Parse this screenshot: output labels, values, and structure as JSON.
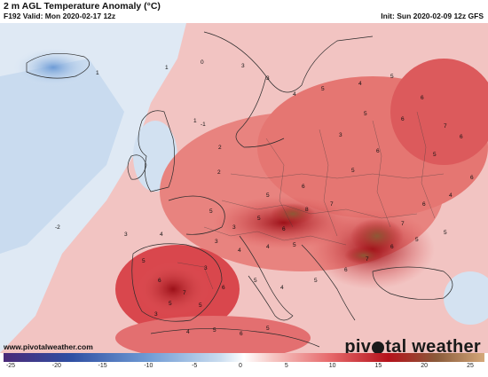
{
  "header": {
    "title": "2 m AGL Temperature Anomaly (°C)",
    "valid": "F192 Valid: Mon 2020-02-17 12z",
    "init": "Init: Sun 2020-02-09 12z GFS"
  },
  "footer": {
    "credit": "www.pivotalweather.com",
    "brand_pre": "piv",
    "brand_post": "tal weather"
  },
  "colorbar": {
    "ticks": [
      "-25",
      "-20",
      "-15",
      "-10",
      "-5",
      "0",
      "5",
      "10",
      "15",
      "20",
      "25"
    ],
    "min": -25,
    "max": 25,
    "colors": {
      "neg_extreme": "#4b2a78",
      "neg_deep": "#2f4fa3",
      "neg_mid": "#6f9bd4",
      "neg_light": "#c9dcef",
      "zero": "#ffffff",
      "pos_light": "#f6c6c3",
      "pos_mid": "#e6686a",
      "pos_deep": "#b5121b",
      "pos_extreme": "#8a5a3a",
      "pos_hot": "#d4a87a"
    }
  },
  "map_values": [
    "0",
    "1",
    "1",
    "-1",
    "1",
    "2",
    "3",
    "3",
    "4",
    "5",
    "4",
    "5",
    "6",
    "3",
    "5",
    "6",
    "7",
    "6",
    "5",
    "6",
    "5",
    "2",
    "-2",
    "5",
    "6",
    "7",
    "8",
    "5",
    "3",
    "6",
    "3",
    "4",
    "4",
    "5",
    "3",
    "6",
    "7",
    "5",
    "5",
    "6",
    "5",
    "4",
    "5",
    "6",
    "7",
    "6",
    "5",
    "5",
    "7",
    "6",
    "4",
    "6",
    "5",
    "3",
    "4",
    "5",
    "6",
    "5",
    "3",
    "4",
    "5"
  ]
}
